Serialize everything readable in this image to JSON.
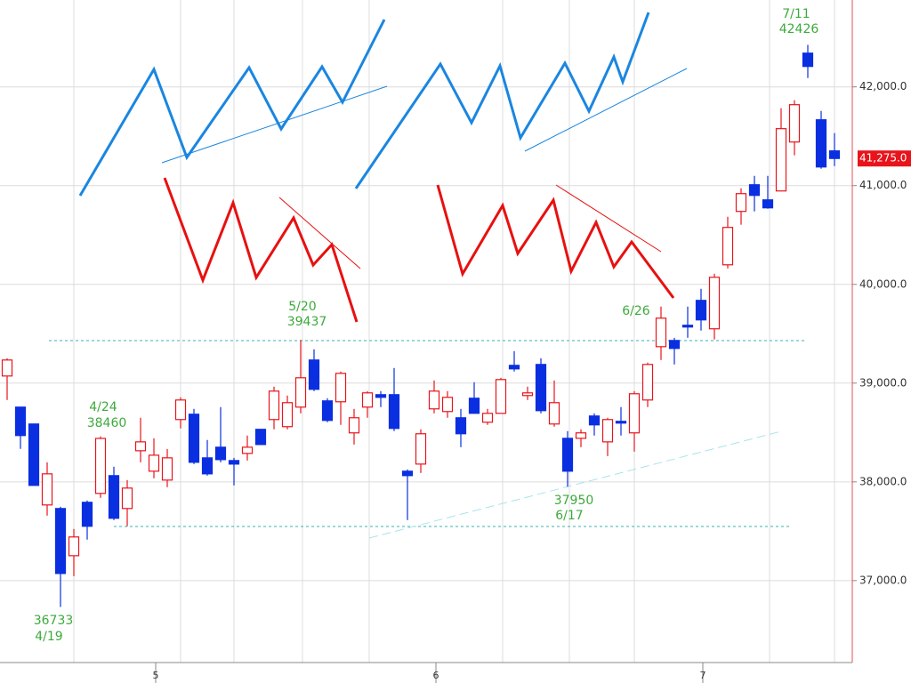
{
  "chart_data": {
    "type": "candlestick",
    "categories": [
      null,
      null,
      null,
      null,
      null,
      null,
      null,
      null,
      null,
      null,
      null,
      "5",
      null,
      null,
      null,
      null,
      null,
      null,
      null,
      null,
      null,
      null,
      null,
      null,
      null,
      null,
      null,
      null,
      null,
      null,
      null,
      null,
      "6",
      null,
      null,
      null,
      null,
      null,
      null,
      null,
      null,
      null,
      null,
      null,
      null,
      null,
      null,
      null,
      null,
      null,
      null,
      null,
      "7",
      null,
      null,
      null,
      null,
      null,
      null,
      null,
      null,
      null,
      null
    ],
    "open": [
      39072,
      38757,
      38586,
      37766,
      37730,
      37252,
      37793,
      37883,
      38063,
      37730,
      38315,
      38108,
      38018,
      38631,
      38685,
      38243,
      38351,
      38216,
      38288,
      38532,
      38631,
      38559,
      38757,
      39234,
      38820,
      38811,
      38496,
      38757,
      38883,
      38883,
      38108,
      38180,
      38739,
      38712,
      38649,
      38847,
      38604,
      38694,
      39180,
      38874,
      39189,
      38586,
      38441,
      38441,
      38667,
      38405,
      38613,
      38496,
      38829,
      39369,
      39432,
      39586,
      39838,
      39550,
      40198,
      40739,
      41009,
      40856,
      40946,
      41442,
      42342,
      41667,
      41352
    ],
    "high": [
      39252,
      38757,
      38586,
      38198,
      37748,
      37523,
      37811,
      38460,
      38153,
      38018,
      38649,
      38441,
      38333,
      38856,
      38739,
      38424,
      38757,
      38243,
      38469,
      38532,
      38964,
      38874,
      39437,
      39342,
      38847,
      39117,
      38739,
      38919,
      38919,
      39153,
      38126,
      38532,
      39027,
      38919,
      38739,
      39009,
      38739,
      39054,
      39324,
      38964,
      39252,
      39027,
      38514,
      38532,
      38694,
      38649,
      38757,
      38919,
      39207,
      39775,
      39459,
      39775,
      39955,
      40108,
      40685,
      40973,
      41099,
      41099,
      41784,
      41865,
      42426,
      41757,
      41532
    ],
    "low": [
      38829,
      38334,
      37964,
      37658,
      36733,
      37045,
      37415,
      37838,
      37613,
      37550,
      38198,
      38036,
      37946,
      38541,
      38180,
      38063,
      38198,
      37964,
      38216,
      38378,
      38532,
      38532,
      38694,
      38919,
      38604,
      38577,
      38378,
      38649,
      38757,
      38514,
      37613,
      38090,
      38694,
      38649,
      38351,
      38694,
      38577,
      38694,
      39117,
      38829,
      38694,
      38559,
      37950,
      38351,
      38469,
      38261,
      38469,
      38306,
      38757,
      39234,
      39189,
      39459,
      39532,
      39442,
      40162,
      40604,
      40739,
      40766,
      40946,
      41307,
      42090,
      41171,
      41198
    ],
    "close": [
      39234,
      38469,
      37964,
      38081,
      37072,
      37442,
      37550,
      38440,
      37631,
      37937,
      38405,
      38270,
      38243,
      38829,
      38198,
      38081,
      38225,
      38180,
      38351,
      38378,
      38919,
      38802,
      39054,
      38937,
      38622,
      39099,
      38649,
      38901,
      38856,
      38541,
      38063,
      38487,
      38919,
      38856,
      38487,
      38694,
      38694,
      39036,
      39144,
      38901,
      38721,
      38802,
      38108,
      38496,
      38577,
      38631,
      38595,
      38892,
      39189,
      39658,
      39351,
      39568,
      39640,
      40072,
      40577,
      40919,
      40901,
      40775,
      41577,
      41820,
      42207,
      41189,
      41275
    ],
    "up_color": "#e8141b",
    "down_color": "#0a2fe0",
    "ylim": [
      36170,
      42880
    ],
    "yticks": [
      {
        "value": 37000,
        "label": "37,000.0"
      },
      {
        "value": 38000,
        "label": "38,000.0"
      },
      {
        "value": 39000,
        "label": "39,000.0"
      },
      {
        "value": 40000,
        "label": "40,000.0"
      },
      {
        "value": 41000,
        "label": "41,000.0"
      },
      {
        "value": 42000,
        "label": "42,000.0"
      }
    ],
    "grid": true,
    "last_price": {
      "value": 41275,
      "label": "41,275.0"
    },
    "annotations": [
      {
        "date": "4/19",
        "value": 36733
      },
      {
        "date": "4/24",
        "value": 38460
      },
      {
        "date": "5/20",
        "value": 39437
      },
      {
        "date": "6/26"
      },
      {
        "date": "6/17",
        "value": 37950
      },
      {
        "date": "7/11",
        "value": 42426
      }
    ]
  }
}
